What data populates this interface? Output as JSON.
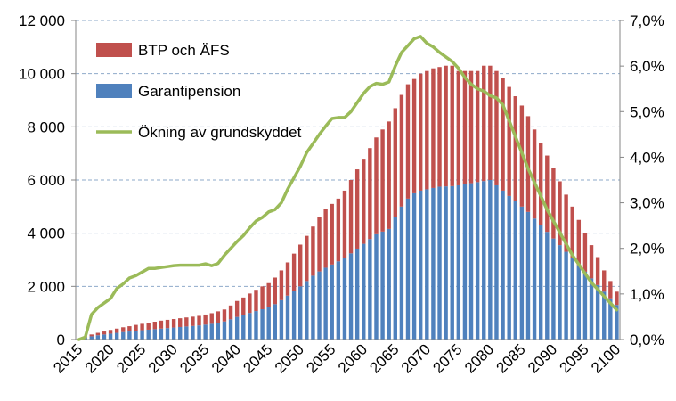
{
  "chart_data": {
    "type": "bar",
    "stacked": true,
    "categories": [
      2015,
      2016,
      2017,
      2018,
      2019,
      2020,
      2021,
      2022,
      2023,
      2024,
      2025,
      2026,
      2027,
      2028,
      2029,
      2030,
      2031,
      2032,
      2033,
      2034,
      2035,
      2036,
      2037,
      2038,
      2039,
      2040,
      2041,
      2042,
      2043,
      2044,
      2045,
      2046,
      2047,
      2048,
      2049,
      2050,
      2051,
      2052,
      2053,
      2054,
      2055,
      2056,
      2057,
      2058,
      2059,
      2060,
      2061,
      2062,
      2063,
      2064,
      2065,
      2066,
      2067,
      2068,
      2069,
      2070,
      2071,
      2072,
      2073,
      2074,
      2075,
      2076,
      2077,
      2078,
      2079,
      2080,
      2081,
      2082,
      2083,
      2084,
      2085,
      2086,
      2087,
      2088,
      2089,
      2090,
      2091,
      2092,
      2093,
      2094,
      2095,
      2096,
      2097,
      2098,
      2099,
      2100
    ],
    "x_tick_labels": [
      "2015",
      "2020",
      "2025",
      "2030",
      "2035",
      "2040",
      "2045",
      "2050",
      "2055",
      "2060",
      "2065",
      "2070",
      "2075",
      "2080",
      "2085",
      "2090",
      "2095",
      "2100"
    ],
    "y_left_tick_labels": [
      "0",
      "2 000",
      "4 000",
      "6 000",
      "8 000",
      "10 000",
      "12 000"
    ],
    "y_right_tick_labels": [
      "0,0%",
      "1,0%",
      "2,0%",
      "3,0%",
      "4,0%",
      "5,0%",
      "6,0%",
      "7,0%"
    ],
    "ylim_left": [
      0,
      12000
    ],
    "ylim_right": [
      0,
      7.0
    ],
    "grid": true,
    "legend_position": "top-left",
    "title": "",
    "xlabel": "",
    "ylabel": "",
    "series": [
      {
        "name": "Garantipension",
        "type": "bar",
        "axis": "left",
        "color": "#4F81BD",
        "values": [
          0,
          80,
          120,
          160,
          190,
          220,
          250,
          280,
          300,
          330,
          350,
          370,
          390,
          410,
          430,
          450,
          470,
          490,
          510,
          530,
          560,
          590,
          630,
          680,
          760,
          850,
          930,
          1000,
          1070,
          1140,
          1220,
          1330,
          1480,
          1650,
          1830,
          2000,
          2200,
          2400,
          2560,
          2700,
          2820,
          2940,
          3080,
          3240,
          3420,
          3600,
          3780,
          3960,
          4060,
          4160,
          4600,
          5000,
          5300,
          5500,
          5600,
          5650,
          5700,
          5750,
          5760,
          5770,
          5800,
          5850,
          5880,
          5920,
          5960,
          6000,
          5800,
          5600,
          5400,
          5200,
          5000,
          4800,
          4550,
          4300,
          4050,
          3800,
          3550,
          3300,
          3050,
          2800,
          2550,
          2300,
          2050,
          1800,
          1550,
          1300
        ]
      },
      {
        "name": "BTP och ÄFS",
        "type": "bar",
        "axis": "left",
        "color": "#C0504D",
        "values": [
          0,
          40,
          70,
          90,
          110,
          140,
          160,
          180,
          200,
          220,
          240,
          260,
          280,
          300,
          310,
          320,
          330,
          340,
          350,
          360,
          380,
          400,
          430,
          450,
          520,
          600,
          650,
          730,
          800,
          860,
          900,
          1000,
          1120,
          1250,
          1400,
          1570,
          1700,
          1850,
          2040,
          2200,
          2280,
          2360,
          2520,
          2760,
          2980,
          3200,
          3420,
          3640,
          3840,
          4040,
          4100,
          4200,
          4300,
          4300,
          4400,
          4450,
          4500,
          4500,
          4540,
          4530,
          4300,
          4250,
          4220,
          4180,
          4340,
          4300,
          4300,
          4240,
          4100,
          3950,
          3800,
          3600,
          3350,
          3100,
          2870,
          2650,
          2400,
          2150,
          1950,
          1700,
          1450,
          1250,
          1050,
          800,
          650,
          500
        ]
      },
      {
        "name": "Ökning av grundskyddet",
        "type": "line",
        "axis": "right",
        "color": "#9BBB59",
        "values": [
          0.0,
          0.05,
          0.55,
          0.7,
          0.8,
          0.9,
          1.12,
          1.22,
          1.35,
          1.4,
          1.48,
          1.56,
          1.56,
          1.58,
          1.6,
          1.62,
          1.63,
          1.63,
          1.63,
          1.63,
          1.66,
          1.62,
          1.67,
          1.85,
          2.0,
          2.15,
          2.28,
          2.45,
          2.6,
          2.68,
          2.8,
          2.85,
          3.0,
          3.3,
          3.55,
          3.8,
          4.1,
          4.3,
          4.5,
          4.68,
          4.85,
          4.87,
          4.87,
          5.0,
          5.2,
          5.4,
          5.55,
          5.62,
          5.6,
          5.65,
          6.0,
          6.3,
          6.45,
          6.6,
          6.65,
          6.5,
          6.42,
          6.3,
          6.2,
          6.1,
          5.95,
          5.75,
          5.6,
          5.5,
          5.45,
          5.35,
          5.3,
          5.15,
          4.8,
          4.45,
          4.1,
          3.75,
          3.45,
          3.15,
          2.85,
          2.6,
          2.35,
          2.1,
          1.85,
          1.65,
          1.45,
          1.25,
          1.1,
          0.95,
          0.8,
          0.65
        ]
      }
    ]
  }
}
